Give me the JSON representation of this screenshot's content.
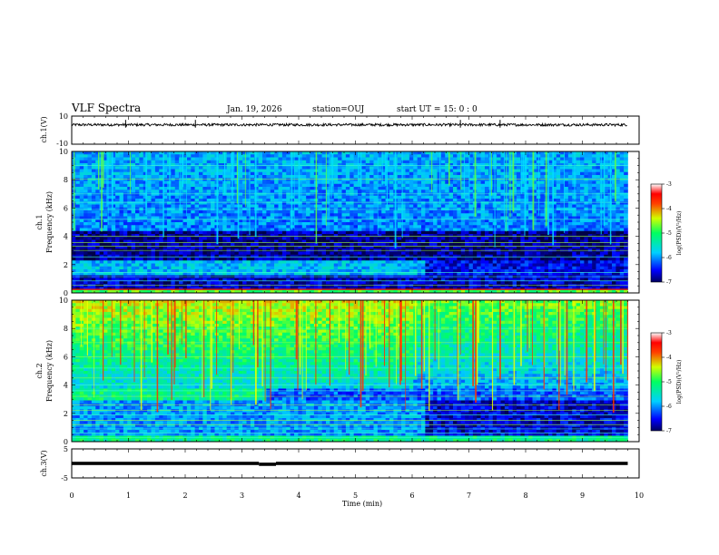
{
  "header": {
    "title": "VLF Spectra",
    "date": "Jan. 19, 2026",
    "station": "station=OUJ",
    "start": "start  UT =   15: 0  : 0"
  },
  "chart_data": {
    "type": "heatmap",
    "title": "VLF Spectra",
    "xlabel": "Time  (min)",
    "xlim": [
      0,
      10
    ],
    "x_ticks": [
      "0",
      "1",
      "2",
      "3",
      "4",
      "5",
      "6",
      "7",
      "8",
      "9",
      "10"
    ],
    "data_end_min": 9.8,
    "panels": [
      {
        "id": "ch1-waveform",
        "type": "line",
        "ylabel": "ch.1(V)",
        "ylim": [
          -10,
          10
        ],
        "y_ticks": [
          "10",
          "-10"
        ],
        "mean_level": 3.8
      },
      {
        "id": "ch1-spectrogram",
        "type": "heatmap",
        "ylabel_channel": "ch.1",
        "ylabel": "Frequency  (kHz)",
        "ylim": [
          0,
          10
        ],
        "y_ticks": [
          "10",
          "8",
          "6",
          "4",
          "2",
          "0"
        ],
        "colorbar": {
          "label": "log(PSD)(V²/Hz)",
          "range": [
            -7,
            -3
          ],
          "ticks": [
            "-3",
            "-4",
            "-5",
            "-6",
            "-7"
          ]
        }
      },
      {
        "id": "ch2-spectrogram",
        "type": "heatmap",
        "ylabel_channel": "ch.2",
        "ylabel": "Frequency  (kHz)",
        "ylim": [
          0,
          10
        ],
        "y_ticks": [
          "10",
          "8",
          "6",
          "4",
          "2",
          "0"
        ],
        "colorbar": {
          "label": "log(PSD)(V²/Hz)",
          "range": [
            -7,
            -3
          ],
          "ticks": [
            "-3",
            "-4",
            "-5",
            "-6",
            "-7"
          ]
        }
      },
      {
        "id": "ch3-waveform",
        "type": "line",
        "ylabel": "ch.3(V)",
        "ylim": [
          -5,
          5
        ],
        "y_ticks": [
          "5",
          "0",
          "-5"
        ],
        "segments": [
          {
            "t0": 0,
            "t1": 3.3,
            "value": 0
          },
          {
            "t0": 3.3,
            "t1": 3.6,
            "value": -0.3
          },
          {
            "t0": 3.6,
            "t1": 9.8,
            "value": 0
          }
        ]
      }
    ]
  }
}
